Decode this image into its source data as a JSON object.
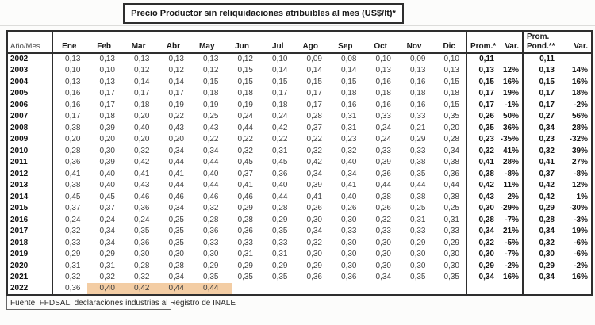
{
  "title": "Precio Productor sin reliquidaciones atribuibles al mes (US$/lt)*",
  "footer": "Fuente: FFDSAL, declaraciones industrias al Registro de INALE",
  "colors": {
    "highlight": "#f3cda4",
    "border": "#2e2e2e"
  },
  "table": {
    "year_header": "Año/Mes",
    "month_headers": [
      "Ene",
      "Feb",
      "Mar",
      "Abr",
      "May",
      "Jun",
      "Jul",
      "Ago",
      "Sep",
      "Oct",
      "Nov",
      "Dic"
    ],
    "prom_header": "Prom.*",
    "prom_var_header": "Var.",
    "pond_header_line1": "Prom.",
    "pond_header_line2": "Pond.**",
    "pond_var_header": "Var.",
    "rows": [
      {
        "year": "2002",
        "months": [
          "0,13",
          "0,13",
          "0,13",
          "0,13",
          "0,13",
          "0,12",
          "0,10",
          "0,09",
          "0,08",
          "0,10",
          "0,09",
          "0,10"
        ],
        "prom": "0,11",
        "prom_var": "",
        "pond": "0,11",
        "pond_var": "",
        "highlight_months": []
      },
      {
        "year": "2003",
        "months": [
          "0,10",
          "0,10",
          "0,12",
          "0,12",
          "0,12",
          "0,15",
          "0,14",
          "0,14",
          "0,14",
          "0,13",
          "0,13",
          "0,13"
        ],
        "prom": "0,13",
        "prom_var": "12%",
        "pond": "0,13",
        "pond_var": "14%",
        "highlight_months": []
      },
      {
        "year": "2004",
        "months": [
          "0,13",
          "0,13",
          "0,14",
          "0,14",
          "0,15",
          "0,15",
          "0,15",
          "0,15",
          "0,15",
          "0,16",
          "0,16",
          "0,15"
        ],
        "prom": "0,15",
        "prom_var": "16%",
        "pond": "0,15",
        "pond_var": "16%",
        "highlight_months": []
      },
      {
        "year": "2005",
        "months": [
          "0,16",
          "0,17",
          "0,17",
          "0,17",
          "0,18",
          "0,18",
          "0,17",
          "0,17",
          "0,18",
          "0,18",
          "0,18",
          "0,18"
        ],
        "prom": "0,17",
        "prom_var": "19%",
        "pond": "0,17",
        "pond_var": "18%",
        "highlight_months": []
      },
      {
        "year": "2006",
        "months": [
          "0,16",
          "0,17",
          "0,18",
          "0,19",
          "0,19",
          "0,19",
          "0,18",
          "0,17",
          "0,16",
          "0,16",
          "0,16",
          "0,15"
        ],
        "prom": "0,17",
        "prom_var": "-1%",
        "pond": "0,17",
        "pond_var": "-2%",
        "highlight_months": []
      },
      {
        "year": "2007",
        "months": [
          "0,17",
          "0,18",
          "0,20",
          "0,22",
          "0,25",
          "0,24",
          "0,24",
          "0,28",
          "0,31",
          "0,33",
          "0,33",
          "0,35"
        ],
        "prom": "0,26",
        "prom_var": "50%",
        "pond": "0,27",
        "pond_var": "56%",
        "highlight_months": []
      },
      {
        "year": "2008",
        "months": [
          "0,38",
          "0,39",
          "0,40",
          "0,43",
          "0,43",
          "0,44",
          "0,42",
          "0,37",
          "0,31",
          "0,24",
          "0,21",
          "0,20"
        ],
        "prom": "0,35",
        "prom_var": "36%",
        "pond": "0,34",
        "pond_var": "28%",
        "highlight_months": []
      },
      {
        "year": "2009",
        "months": [
          "0,20",
          "0,20",
          "0,20",
          "0,20",
          "0,22",
          "0,22",
          "0,22",
          "0,22",
          "0,23",
          "0,24",
          "0,29",
          "0,28"
        ],
        "prom": "0,23",
        "prom_var": "-35%",
        "pond": "0,23",
        "pond_var": "-32%",
        "highlight_months": []
      },
      {
        "year": "2010",
        "months": [
          "0,28",
          "0,30",
          "0,32",
          "0,34",
          "0,34",
          "0,32",
          "0,31",
          "0,32",
          "0,32",
          "0,33",
          "0,33",
          "0,34"
        ],
        "prom": "0,32",
        "prom_var": "41%",
        "pond": "0,32",
        "pond_var": "39%",
        "highlight_months": []
      },
      {
        "year": "2011",
        "months": [
          "0,36",
          "0,39",
          "0,42",
          "0,44",
          "0,44",
          "0,45",
          "0,45",
          "0,42",
          "0,40",
          "0,39",
          "0,38",
          "0,38"
        ],
        "prom": "0,41",
        "prom_var": "28%",
        "pond": "0,41",
        "pond_var": "27%",
        "highlight_months": []
      },
      {
        "year": "2012",
        "months": [
          "0,41",
          "0,40",
          "0,41",
          "0,41",
          "0,40",
          "0,37",
          "0,36",
          "0,34",
          "0,34",
          "0,36",
          "0,35",
          "0,36"
        ],
        "prom": "0,38",
        "prom_var": "-8%",
        "pond": "0,37",
        "pond_var": "-8%",
        "highlight_months": []
      },
      {
        "year": "2013",
        "months": [
          "0,38",
          "0,40",
          "0,43",
          "0,44",
          "0,44",
          "0,41",
          "0,40",
          "0,39",
          "0,41",
          "0,44",
          "0,44",
          "0,44"
        ],
        "prom": "0,42",
        "prom_var": "11%",
        "pond": "0,42",
        "pond_var": "12%",
        "highlight_months": []
      },
      {
        "year": "2014",
        "months": [
          "0,45",
          "0,45",
          "0,46",
          "0,46",
          "0,46",
          "0,46",
          "0,44",
          "0,41",
          "0,40",
          "0,38",
          "0,38",
          "0,38"
        ],
        "prom": "0,43",
        "prom_var": "2%",
        "pond": "0,42",
        "pond_var": "1%",
        "highlight_months": []
      },
      {
        "year": "2015",
        "months": [
          "0,37",
          "0,37",
          "0,36",
          "0,34",
          "0,32",
          "0,29",
          "0,28",
          "0,26",
          "0,26",
          "0,26",
          "0,25",
          "0,25"
        ],
        "prom": "0,30",
        "prom_var": "-29%",
        "pond": "0,29",
        "pond_var": "-30%",
        "highlight_months": []
      },
      {
        "year": "2016",
        "months": [
          "0,24",
          "0,24",
          "0,24",
          "0,25",
          "0,28",
          "0,28",
          "0,29",
          "0,30",
          "0,30",
          "0,32",
          "0,31",
          "0,31"
        ],
        "prom": "0,28",
        "prom_var": "-7%",
        "pond": "0,28",
        "pond_var": "-3%",
        "highlight_months": []
      },
      {
        "year": "2017",
        "months": [
          "0,32",
          "0,34",
          "0,35",
          "0,35",
          "0,36",
          "0,36",
          "0,35",
          "0,34",
          "0,33",
          "0,33",
          "0,33",
          "0,33"
        ],
        "prom": "0,34",
        "prom_var": "21%",
        "pond": "0,34",
        "pond_var": "19%",
        "highlight_months": []
      },
      {
        "year": "2018",
        "months": [
          "0,33",
          "0,34",
          "0,36",
          "0,35",
          "0,33",
          "0,33",
          "0,33",
          "0,32",
          "0,30",
          "0,30",
          "0,29",
          "0,29"
        ],
        "prom": "0,32",
        "prom_var": "-5%",
        "pond": "0,32",
        "pond_var": "-6%",
        "highlight_months": []
      },
      {
        "year": "2019",
        "months": [
          "0,29",
          "0,29",
          "0,30",
          "0,30",
          "0,30",
          "0,31",
          "0,31",
          "0,30",
          "0,30",
          "0,30",
          "0,30",
          "0,30"
        ],
        "prom": "0,30",
        "prom_var": "-7%",
        "pond": "0,30",
        "pond_var": "-6%",
        "highlight_months": []
      },
      {
        "year": "2020",
        "months": [
          "0,31",
          "0,31",
          "0,28",
          "0,28",
          "0,29",
          "0,29",
          "0,29",
          "0,29",
          "0,30",
          "0,30",
          "0,30",
          "0,30"
        ],
        "prom": "0,29",
        "prom_var": "-2%",
        "pond": "0,29",
        "pond_var": "-2%",
        "highlight_months": []
      },
      {
        "year": "2021",
        "months": [
          "0,32",
          "0,32",
          "0,32",
          "0,34",
          "0,35",
          "0,35",
          "0,35",
          "0,36",
          "0,36",
          "0,34",
          "0,35",
          "0,35"
        ],
        "prom": "0,34",
        "prom_var": "16%",
        "pond": "0,34",
        "pond_var": "16%",
        "highlight_months": []
      },
      {
        "year": "2022",
        "months": [
          "0,36",
          "0,40",
          "0,42",
          "0,44",
          "0,44",
          "",
          "",
          "",
          "",
          "",
          "",
          ""
        ],
        "prom": "",
        "prom_var": "",
        "pond": "",
        "pond_var": "",
        "highlight_months": [
          1,
          2,
          3,
          4
        ]
      }
    ]
  }
}
